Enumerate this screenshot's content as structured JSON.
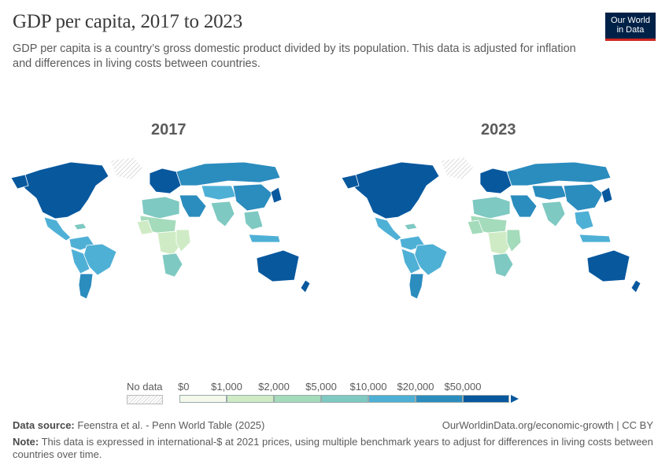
{
  "header": {
    "title": "GDP per capita, 2017 to 2023",
    "subtitle": "GDP per capita is a country’s gross domestic product divided by its population. This data is adjusted for inflation and differences in living costs between countries."
  },
  "logo": {
    "line1": "Our World",
    "line2": "in Data",
    "bg_color": "#002147",
    "accent_color": "#ce261e"
  },
  "maps": [
    {
      "year": "2017"
    },
    {
      "year": "2023"
    }
  ],
  "legend": {
    "no_data_label": "No data",
    "tick_labels": [
      "$0",
      "$1,000",
      "$2,000",
      "$5,000",
      "$10,000",
      "$20,000",
      "$50,000"
    ],
    "colors": [
      "#f4f9ec",
      "#cfebc5",
      "#a4dbbb",
      "#7ec9c2",
      "#4fb0d6",
      "#2b8cbe",
      "#08589e"
    ],
    "no_data_color": "#e6e6e6"
  },
  "footer": {
    "source_label": "Data source:",
    "source_text": "Feenstra et al. - Penn World Table (2025)",
    "url": "OurWorldinData.org/economic-growth | CC BY",
    "note_label": "Note:",
    "note_text": "This data is expressed in international-$ at 2021 prices, using multiple benchmark years to adjust for differences in living costs between countries over time."
  }
}
